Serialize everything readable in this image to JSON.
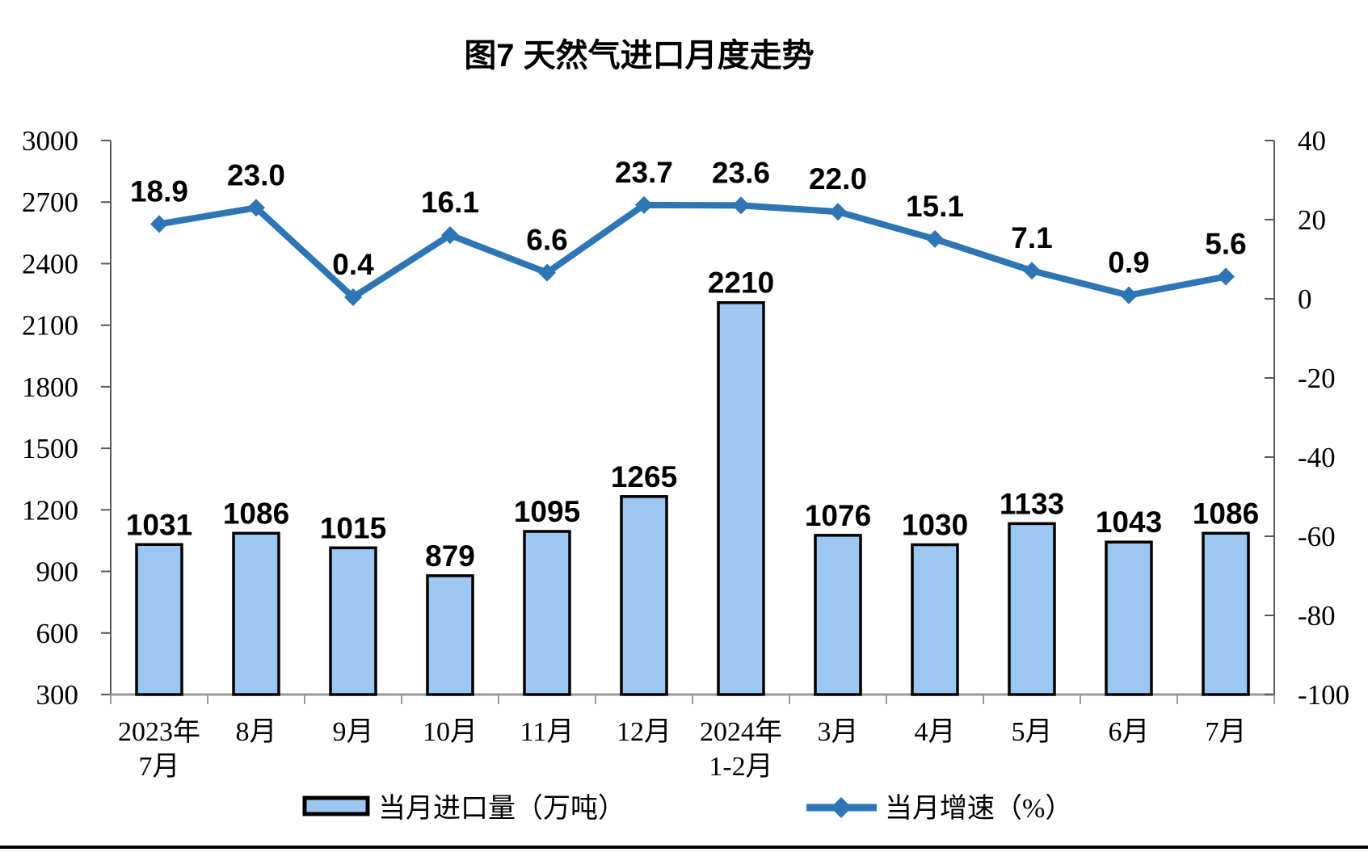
{
  "title": "图7 天然气进口月度走势",
  "chart_data": {
    "type": "bar",
    "subtype": "bar+line dual axis",
    "categories": [
      "2023年\n7月",
      "8月",
      "9月",
      "10月",
      "11月",
      "12月",
      "2024年\n1-2月",
      "3月",
      "4月",
      "5月",
      "6月",
      "7月"
    ],
    "series": [
      {
        "name": "当月进口量（万吨）",
        "type": "bar",
        "axis": "left",
        "values": [
          1031,
          1086,
          1015,
          879,
          1095,
          1265,
          2210,
          1076,
          1030,
          1133,
          1043,
          1086
        ],
        "labels": [
          "1031",
          "1086",
          "1015",
          "879",
          "1095",
          "1265",
          "2210",
          "1076",
          "1030",
          "1133",
          "1043",
          "1086"
        ],
        "fill": "#9CC7F2",
        "stroke": "#000000"
      },
      {
        "name": "当月增速（%）",
        "type": "line",
        "axis": "right",
        "values": [
          18.9,
          23.0,
          0.4,
          16.1,
          6.6,
          23.7,
          23.6,
          22.0,
          15.1,
          7.1,
          0.9,
          5.6
        ],
        "labels": [
          "18.9",
          "23.0",
          "0.4",
          "16.1",
          "6.6",
          "23.7",
          "23.6",
          "22.0",
          "15.1",
          "7.1",
          "0.9",
          "5.6"
        ],
        "color": "#2E75B6"
      }
    ],
    "left_axis": {
      "ylim": [
        300,
        3000
      ],
      "step": 300,
      "ticks": [
        "3000",
        "2700",
        "2400",
        "2100",
        "1800",
        "1500",
        "1200",
        "900",
        "600",
        "300"
      ]
    },
    "right_axis": {
      "ylim": [
        -100,
        40
      ],
      "step": 20,
      "ticks": [
        "40",
        "20",
        "0",
        "-20",
        "-40",
        "-60",
        "-80",
        "-100"
      ]
    },
    "grid": "off",
    "legend_position": "bottom",
    "legend": [
      {
        "label": "当月进口量（万吨）"
      },
      {
        "label": "当月增速（%）"
      }
    ]
  }
}
